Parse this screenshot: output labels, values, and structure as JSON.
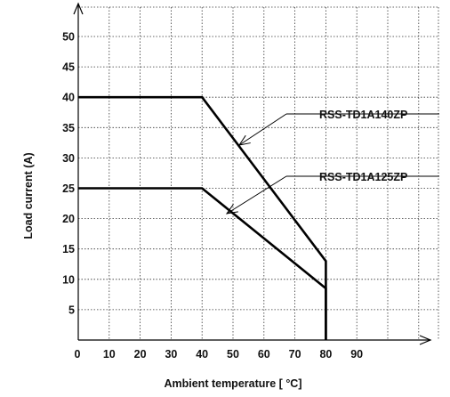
{
  "chart_data": {
    "type": "line",
    "xlabel": "Ambient  temperature [ °C]",
    "ylabel": "Load current (A)",
    "xlim": [
      0,
      100
    ],
    "ylim": [
      0,
      55
    ],
    "xticks": [
      0,
      10,
      20,
      30,
      40,
      50,
      60,
      70,
      80,
      90
    ],
    "yticks": [
      5,
      10,
      15,
      20,
      25,
      30,
      35,
      40,
      45,
      50
    ],
    "grid": true,
    "series": [
      {
        "name": "RSS-TD1A140ZP",
        "x": [
          0,
          40,
          80,
          80
        ],
        "y": [
          40,
          40,
          13,
          0
        ]
      },
      {
        "name": "RSS-TD1A125ZP",
        "x": [
          0,
          40,
          80,
          80
        ],
        "y": [
          25,
          25,
          8.5,
          0
        ]
      }
    ]
  }
}
